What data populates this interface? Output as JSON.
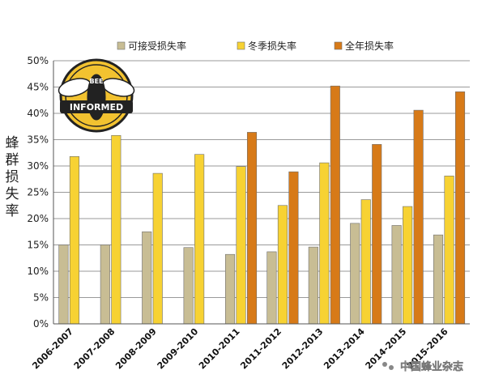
{
  "chart_data": {
    "type": "bar",
    "categories": [
      "2006-2007",
      "2007-2008",
      "2008-2009",
      "2009-2010",
      "2010-2011",
      "2011-2012",
      "2012-2013",
      "2013-2014",
      "2014-2015",
      "2015-2016"
    ],
    "series": [
      {
        "name": "可接受损失率",
        "color": "#c8bd94",
        "values": [
          15.0,
          15.0,
          17.5,
          14.5,
          13.2,
          13.7,
          14.6,
          19.1,
          18.7,
          16.9
        ]
      },
      {
        "name": "冬季损失率",
        "color": "#f7d233",
        "values": [
          31.8,
          35.8,
          28.6,
          32.2,
          29.9,
          22.5,
          30.6,
          23.6,
          22.3,
          28.1
        ]
      },
      {
        "name": "全年损失率",
        "color": "#d77a18",
        "values": [
          null,
          null,
          null,
          null,
          36.4,
          28.9,
          45.2,
          34.1,
          40.6,
          44.1
        ]
      }
    ],
    "ylabel": "蜂群损失率",
    "ylim": [
      0,
      50
    ],
    "yticks": [
      "0%",
      "5%",
      "10%",
      "15%",
      "20%",
      "25%",
      "30%",
      "35%",
      "40%",
      "45%",
      "50%"
    ],
    "grid": true,
    "legend_position": "top"
  },
  "logo": {
    "line1": "BEE",
    "line2": "INFORMED"
  },
  "watermark": "中国蜂业杂志"
}
